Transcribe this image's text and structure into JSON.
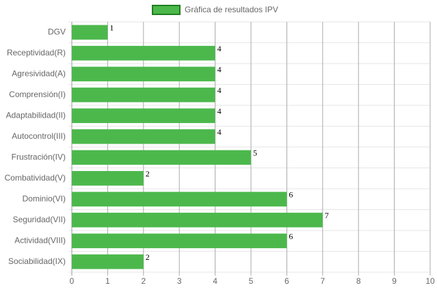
{
  "chart_data": {
    "type": "bar",
    "orientation": "horizontal",
    "categories": [
      "DGV",
      "Receptividad(R)",
      "Agresividad(A)",
      "Comprensión(I)",
      "Adaptabilidad(II)",
      "Autocontrol(III)",
      "Frustración(IV)",
      "Combatividad(V)",
      "Dominio(VI)",
      "Seguridad(VII)",
      "Actividad(VIII)",
      "Sociabilidad(IX)"
    ],
    "series": [
      {
        "name": "Gráfica de resultados IPV",
        "color": "#4cb84c",
        "values": [
          1,
          4,
          4,
          4,
          4,
          4,
          5,
          2,
          6,
          7,
          6,
          2
        ]
      }
    ],
    "xlim": [
      0,
      10
    ],
    "xticks": [
      0,
      1,
      2,
      3,
      4,
      5,
      6,
      7,
      8,
      9,
      10
    ],
    "grid": true,
    "legend": "top"
  }
}
